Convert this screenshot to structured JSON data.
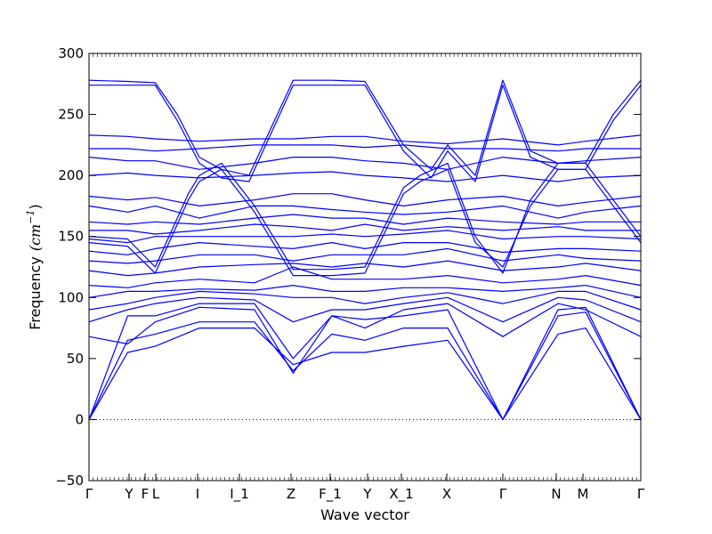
{
  "chart_data": {
    "type": "line",
    "xlabel": "Wave vector",
    "ylabel": "Frequency",
    "ylabel_unit": "(cm",
    "ylabel_unit_exp": "−1",
    "ylabel_unit_close": ")",
    "ylim": [
      -50,
      300
    ],
    "yticks": [
      -50,
      0,
      50,
      100,
      150,
      200,
      250,
      300
    ],
    "grid": false,
    "legend": "none",
    "line_color": "#0000ff",
    "zero_line": {
      "y": 0,
      "style": "dotted",
      "color": "#000000"
    },
    "kpoints": [
      {
        "label": "Γ",
        "x": 0
      },
      {
        "label": "Y",
        "x": 0.0726
      },
      {
        "label": "F",
        "x": 0.1016
      },
      {
        "label": "L",
        "x": 0.121
      },
      {
        "label": "I",
        "x": 0.1968
      },
      {
        "label": "I_1",
        "x": 0.2726
      },
      {
        "label": "Z",
        "x": 0.3661
      },
      {
        "label": "F_1",
        "x": 0.4371
      },
      {
        "label": "Y",
        "x": 0.5048
      },
      {
        "label": "X_1",
        "x": 0.5661
      },
      {
        "label": "X",
        "x": 0.6484
      },
      {
        "label": "Γ",
        "x": 0.75
      },
      {
        "label": "N",
        "x": 0.8468
      },
      {
        "label": "M",
        "x": 0.8952
      },
      {
        "label": "Γ",
        "x": 1.0
      }
    ],
    "series": [
      {
        "x": [
          0,
          0.07,
          0.12,
          0.2,
          0.3,
          0.37,
          0.44,
          0.5,
          0.57,
          0.65,
          0.75,
          0.85,
          0.9,
          1.0
        ],
        "y": [
          0,
          55,
          60,
          75,
          75,
          45,
          55,
          55,
          60,
          65,
          0,
          70,
          75,
          0
        ]
      },
      {
        "x": [
          0,
          0.07,
          0.12,
          0.2,
          0.3,
          0.37,
          0.44,
          0.5,
          0.57,
          0.65,
          0.75,
          0.85,
          0.9,
          1.0
        ],
        "y": [
          0,
          65,
          70,
          80,
          80,
          40,
          70,
          65,
          75,
          75,
          0,
          85,
          88,
          0
        ]
      },
      {
        "x": [
          0,
          0.07,
          0.12,
          0.2,
          0.3,
          0.37,
          0.44,
          0.5,
          0.57,
          0.65,
          0.75,
          0.85,
          0.9,
          1.0
        ],
        "y": [
          0,
          85,
          85,
          95,
          95,
          50,
          85,
          82,
          85,
          90,
          0,
          90,
          92,
          0
        ]
      },
      {
        "x": [
          0,
          0.07,
          0.12,
          0.2,
          0.3,
          0.37,
          0.44,
          0.5,
          0.57,
          0.65,
          0.75,
          0.85,
          0.9,
          1.0
        ],
        "y": [
          68,
          62,
          80,
          92,
          90,
          38,
          85,
          75,
          90,
          95,
          68,
          95,
          90,
          68
        ]
      },
      {
        "x": [
          0,
          0.07,
          0.12,
          0.2,
          0.3,
          0.37,
          0.44,
          0.5,
          0.57,
          0.65,
          0.75,
          0.85,
          0.9,
          1.0
        ],
        "y": [
          80,
          90,
          95,
          100,
          98,
          80,
          90,
          90,
          95,
          100,
          80,
          100,
          98,
          80
        ]
      },
      {
        "x": [
          0,
          0.07,
          0.12,
          0.2,
          0.3,
          0.37,
          0.44,
          0.5,
          0.57,
          0.65,
          0.75,
          0.85,
          0.9,
          1.0
        ],
        "y": [
          90,
          95,
          100,
          105,
          103,
          100,
          100,
          95,
          100,
          104,
          95,
          105,
          105,
          90
        ]
      },
      {
        "x": [
          0,
          0.07,
          0.12,
          0.2,
          0.3,
          0.37,
          0.44,
          0.5,
          0.57,
          0.65,
          0.75,
          0.85,
          0.9,
          1.0
        ],
        "y": [
          100,
          105,
          105,
          107,
          106,
          110,
          105,
          105,
          108,
          108,
          105,
          108,
          110,
          100
        ]
      },
      {
        "x": [
          0,
          0.07,
          0.12,
          0.2,
          0.3,
          0.37,
          0.44,
          0.5,
          0.57,
          0.65,
          0.75,
          0.85,
          0.9,
          1.0
        ],
        "y": [
          110,
          108,
          112,
          115,
          112,
          125,
          115,
          115,
          115,
          118,
          112,
          115,
          118,
          110
        ]
      },
      {
        "x": [
          0,
          0.07,
          0.12,
          0.2,
          0.3,
          0.37,
          0.44,
          0.5,
          0.57,
          0.65,
          0.75,
          0.85,
          0.9,
          1.0
        ],
        "y": [
          122,
          118,
          120,
          125,
          127,
          128,
          125,
          128,
          125,
          130,
          122,
          125,
          128,
          122
        ]
      },
      {
        "x": [
          0,
          0.07,
          0.12,
          0.2,
          0.3,
          0.37,
          0.44,
          0.5,
          0.57,
          0.65,
          0.75,
          0.85,
          0.9,
          1.0
        ],
        "y": [
          130,
          128,
          130,
          135,
          135,
          130,
          135,
          135,
          135,
          140,
          130,
          135,
          132,
          130
        ]
      },
      {
        "x": [
          0,
          0.07,
          0.12,
          0.2,
          0.3,
          0.37,
          0.44,
          0.5,
          0.57,
          0.65,
          0.75,
          0.85,
          0.9,
          1.0
        ],
        "y": [
          138,
          135,
          140,
          145,
          142,
          140,
          145,
          140,
          145,
          145,
          137,
          140,
          140,
          138
        ]
      },
      {
        "x": [
          0,
          0.07,
          0.12,
          0.2,
          0.3,
          0.37,
          0.44,
          0.5,
          0.57,
          0.65,
          0.75,
          0.85,
          0.9,
          1.0
        ],
        "y": [
          148,
          145,
          150,
          150,
          150,
          150,
          152,
          150,
          152,
          155,
          148,
          150,
          150,
          148
        ]
      },
      {
        "x": [
          0,
          0.07,
          0.12,
          0.2,
          0.3,
          0.37,
          0.44,
          0.5,
          0.57,
          0.65,
          0.75,
          0.85,
          0.9,
          1.0
        ],
        "y": [
          155,
          155,
          152,
          155,
          160,
          158,
          155,
          160,
          155,
          158,
          155,
          158,
          155,
          155
        ]
      },
      {
        "x": [
          0,
          0.07,
          0.12,
          0.2,
          0.3,
          0.37,
          0.44,
          0.5,
          0.57,
          0.65,
          0.75,
          0.85,
          0.9,
          1.0
        ],
        "y": [
          162,
          160,
          162,
          160,
          165,
          168,
          165,
          165,
          160,
          165,
          162,
          160,
          162,
          162
        ]
      },
      {
        "x": [
          0,
          0.07,
          0.12,
          0.2,
          0.3,
          0.37,
          0.44,
          0.5,
          0.57,
          0.65,
          0.75,
          0.85,
          0.9,
          1.0
        ],
        "y": [
          175,
          170,
          175,
          165,
          175,
          175,
          172,
          170,
          168,
          170,
          175,
          165,
          170,
          175
        ]
      },
      {
        "x": [
          0,
          0.07,
          0.12,
          0.2,
          0.3,
          0.37,
          0.44,
          0.5,
          0.57,
          0.65,
          0.75,
          0.85,
          0.9,
          1.0
        ],
        "y": [
          183,
          180,
          182,
          175,
          180,
          185,
          185,
          180,
          175,
          180,
          183,
          175,
          178,
          183
        ]
      },
      {
        "x": [
          0,
          0.07,
          0.12,
          0.2,
          0.3,
          0.37,
          0.44,
          0.5,
          0.57,
          0.65,
          0.75,
          0.85,
          0.9,
          1.0
        ],
        "y": [
          200,
          202,
          200,
          198,
          200,
          202,
          203,
          200,
          198,
          195,
          200,
          195,
          198,
          200
        ]
      },
      {
        "x": [
          0,
          0.07,
          0.12,
          0.2,
          0.3,
          0.37,
          0.44,
          0.5,
          0.57,
          0.65,
          0.75,
          0.85,
          0.9,
          1.0
        ],
        "y": [
          215,
          212,
          212,
          205,
          210,
          215,
          215,
          212,
          210,
          205,
          215,
          210,
          212,
          215
        ]
      },
      {
        "x": [
          0,
          0.07,
          0.12,
          0.2,
          0.3,
          0.37,
          0.44,
          0.5,
          0.57,
          0.65,
          0.75,
          0.85,
          0.9,
          1.0
        ],
        "y": [
          222,
          222,
          220,
          222,
          225,
          225,
          225,
          223,
          225,
          222,
          222,
          220,
          222,
          222
        ]
      },
      {
        "x": [
          0,
          0.07,
          0.12,
          0.2,
          0.3,
          0.37,
          0.44,
          0.5,
          0.57,
          0.65,
          0.75,
          0.85,
          0.9,
          1.0
        ],
        "y": [
          233,
          232,
          230,
          228,
          230,
          230,
          232,
          232,
          228,
          226,
          230,
          225,
          228,
          233
        ]
      },
      {
        "x": [
          0,
          0.07,
          0.12,
          0.16,
          0.2,
          0.24,
          0.29,
          0.37,
          0.44,
          0.5,
          0.57,
          0.62,
          0.65,
          0.7,
          0.75,
          0.8,
          0.85,
          0.9,
          0.95,
          1.0
        ],
        "y": [
          278,
          277,
          276,
          250,
          215,
          205,
          200,
          278,
          278,
          277,
          225,
          205,
          225,
          200,
          278,
          220,
          210,
          210,
          250,
          278
        ]
      },
      {
        "x": [
          0,
          0.07,
          0.12,
          0.16,
          0.2,
          0.24,
          0.29,
          0.37,
          0.44,
          0.5,
          0.57,
          0.62,
          0.65,
          0.7,
          0.75,
          0.8,
          0.85,
          0.9,
          0.95,
          1.0
        ],
        "y": [
          274,
          274,
          274,
          245,
          210,
          198,
          195,
          274,
          274,
          274,
          220,
          198,
          220,
          195,
          274,
          215,
          205,
          205,
          245,
          274
        ]
      },
      {
        "x": [
          0,
          0.07,
          0.12,
          0.18,
          0.2,
          0.24,
          0.3,
          0.37,
          0.44,
          0.5,
          0.57,
          0.6,
          0.65,
          0.7,
          0.75,
          0.8,
          0.85,
          0.9,
          0.95,
          1.0
        ],
        "y": [
          150,
          148,
          125,
          185,
          200,
          210,
          175,
          123,
          123,
          125,
          190,
          200,
          210,
          150,
          120,
          180,
          210,
          210,
          180,
          150
        ]
      },
      {
        "x": [
          0,
          0.07,
          0.12,
          0.18,
          0.2,
          0.24,
          0.3,
          0.37,
          0.44,
          0.5,
          0.57,
          0.6,
          0.65,
          0.7,
          0.75,
          0.8,
          0.85,
          0.9,
          0.95,
          1.0
        ],
        "y": [
          145,
          142,
          120,
          180,
          195,
          205,
          170,
          118,
          118,
          120,
          185,
          195,
          205,
          145,
          125,
          175,
          205,
          205,
          175,
          145
        ]
      }
    ]
  }
}
